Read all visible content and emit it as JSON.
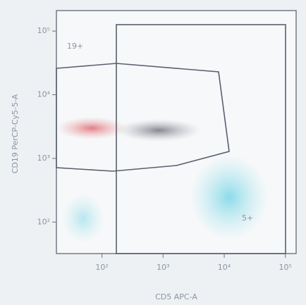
{
  "chart_data": {
    "type": "scatter",
    "x_label": "CD5 APC-A",
    "y_label": "CD19 PerCP-Cy5-5-A",
    "annotations": [
      "19+",
      "5+"
    ],
    "xscale": "log",
    "yscale": "log",
    "xlim": [
      18,
      150000
    ],
    "ylim": [
      32,
      210000
    ],
    "xticks": [
      {
        "value": 100,
        "label": "10²"
      },
      {
        "value": 1000,
        "label": "10³"
      },
      {
        "value": 10000,
        "label": "10⁴"
      },
      {
        "value": 100000,
        "label": "10⁵"
      }
    ],
    "yticks": [
      {
        "value": 100,
        "label": "10²"
      },
      {
        "value": 1000,
        "label": "10³"
      },
      {
        "value": 10000,
        "label": "10⁴"
      },
      {
        "value": 100000,
        "label": "10⁵"
      }
    ]
  }
}
